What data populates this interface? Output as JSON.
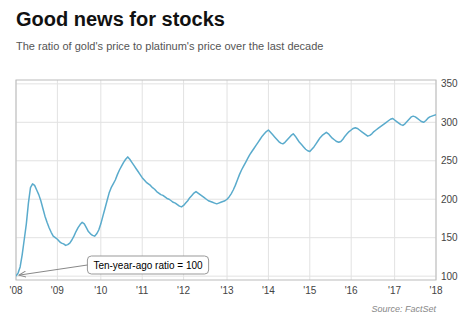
{
  "chart_data": {
    "type": "line",
    "title": "Good news for stocks",
    "subtitle": "The ratio of gold's price to platinum's price over the last decade",
    "annotation": "Ten-year-ago ratio = 100",
    "source": "Source: FactSet",
    "color": "#5aabcc",
    "grid": true,
    "ylim": [
      95,
      355
    ],
    "yticks": [
      100,
      150,
      200,
      250,
      300,
      350
    ],
    "categories": [
      "'08",
      null,
      null,
      null,
      null,
      null,
      null,
      null,
      null,
      null,
      null,
      null,
      null,
      null,
      null,
      null,
      null,
      null,
      null,
      null,
      "'09",
      null,
      null,
      null,
      null,
      null,
      null,
      null,
      null,
      null,
      null,
      null,
      null,
      null,
      null,
      null,
      null,
      null,
      null,
      null,
      null,
      "'10",
      null,
      null,
      null,
      null,
      null,
      null,
      null,
      null,
      null,
      null,
      null,
      null,
      null,
      null,
      null,
      null,
      null,
      null,
      null,
      "'11",
      null,
      null,
      null,
      null,
      null,
      null,
      null,
      null,
      null,
      null,
      null,
      null,
      null,
      null,
      null,
      null,
      null,
      null,
      null,
      "'12",
      null,
      null,
      null,
      null,
      null,
      null,
      null,
      null,
      null,
      null,
      null,
      null,
      null,
      null,
      null,
      null,
      null,
      null,
      null,
      null,
      "'13",
      null,
      null,
      null,
      null,
      null,
      null,
      null,
      null,
      null,
      null,
      null,
      null,
      null,
      null,
      null,
      null,
      null,
      null,
      null,
      "'14",
      null,
      null,
      null,
      null,
      null,
      null,
      null,
      null,
      null,
      null,
      null,
      null,
      null,
      null,
      null,
      null,
      null,
      null,
      null,
      "'15",
      null,
      null,
      null,
      null,
      null,
      null,
      null,
      null,
      null,
      null,
      null,
      null,
      null,
      null,
      null,
      null,
      null,
      null,
      null,
      "'16",
      null,
      null,
      null,
      null,
      null,
      null,
      null,
      null,
      null,
      null,
      null,
      null,
      null,
      null,
      null,
      null,
      null,
      null,
      null,
      null,
      "'17",
      null,
      null,
      null,
      null,
      null,
      null,
      null,
      null,
      null,
      null,
      null,
      null,
      null,
      null,
      null,
      null,
      null,
      null,
      null,
      "'18"
    ],
    "values": [
      100,
      104,
      112,
      128,
      148,
      168,
      195,
      215,
      220,
      218,
      212,
      206,
      198,
      188,
      178,
      170,
      163,
      157,
      152,
      150,
      148,
      145,
      143,
      142,
      140,
      141,
      143,
      147,
      152,
      158,
      163,
      167,
      170,
      168,
      163,
      158,
      155,
      153,
      152,
      155,
      160,
      168,
      178,
      188,
      198,
      208,
      215,
      220,
      225,
      232,
      238,
      243,
      248,
      252,
      255,
      252,
      248,
      244,
      240,
      236,
      232,
      228,
      225,
      222,
      220,
      218,
      215,
      213,
      210,
      208,
      206,
      205,
      203,
      201,
      200,
      198,
      196,
      195,
      193,
      191,
      190,
      192,
      195,
      198,
      202,
      205,
      208,
      210,
      208,
      206,
      204,
      202,
      200,
      198,
      197,
      196,
      195,
      194,
      195,
      196,
      197,
      198,
      200,
      203,
      207,
      212,
      218,
      225,
      232,
      238,
      243,
      248,
      253,
      258,
      262,
      266,
      270,
      274,
      278,
      282,
      285,
      288,
      290,
      287,
      284,
      281,
      278,
      275,
      273,
      272,
      274,
      277,
      280,
      283,
      285,
      282,
      278,
      274,
      271,
      268,
      265,
      263,
      262,
      265,
      268,
      272,
      276,
      280,
      283,
      285,
      287,
      285,
      282,
      279,
      277,
      275,
      274,
      275,
      278,
      282,
      285,
      288,
      290,
      292,
      293,
      292,
      290,
      288,
      286,
      284,
      282,
      283,
      285,
      288,
      290,
      292,
      294,
      296,
      298,
      300,
      302,
      304,
      305,
      303,
      301,
      299,
      297,
      296,
      298,
      301,
      304,
      307,
      308,
      307,
      305,
      303,
      301,
      300,
      302,
      305,
      307,
      308,
      309,
      310
    ]
  }
}
